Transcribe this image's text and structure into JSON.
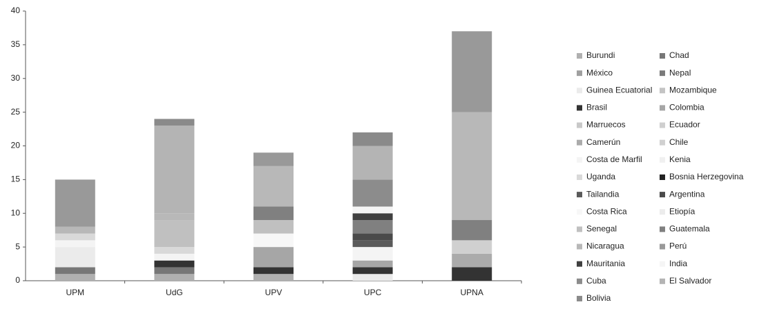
{
  "chart_data": {
    "type": "stacked_bar",
    "categories": [
      "UPM",
      "UdG",
      "UPV",
      "UPC",
      "UPNA"
    ],
    "ylim": [
      0,
      40
    ],
    "yticks": [
      0,
      5,
      10,
      15,
      20,
      25,
      30,
      35,
      40
    ],
    "grid": false,
    "legend": "right",
    "series": [
      {
        "name": "Burundi",
        "color": "#b0b0b0",
        "values": [
          1,
          1,
          1,
          0,
          0
        ]
      },
      {
        "name": "Chad",
        "color": "#777777",
        "values": [
          1,
          1,
          0,
          0,
          0
        ]
      },
      {
        "name": "México",
        "color": "#a0a0a0",
        "values": [
          0,
          0,
          0,
          0,
          0
        ]
      },
      {
        "name": "Nepal",
        "color": "#7a7a7a",
        "values": [
          0,
          0,
          0,
          0,
          0
        ]
      },
      {
        "name": "Guinea Ecuatorial",
        "color": "#ebebeb",
        "values": [
          3,
          0,
          0,
          1,
          0
        ]
      },
      {
        "name": "Mozambique",
        "color": "#c4c4c4",
        "values": [
          0,
          0,
          0,
          0,
          0
        ]
      },
      {
        "name": "Brasil",
        "color": "#333333",
        "values": [
          0,
          1,
          1,
          1,
          2
        ]
      },
      {
        "name": "Colombia",
        "color": "#a6a6a6",
        "values": [
          0,
          0,
          3,
          1,
          0
        ]
      },
      {
        "name": "Marruecos",
        "color": "#c8c8c8",
        "values": [
          0,
          0,
          0,
          0,
          0
        ]
      },
      {
        "name": "Ecuador",
        "color": "#cfcfcf",
        "values": [
          0,
          0,
          0,
          0,
          0
        ]
      },
      {
        "name": "Camerún",
        "color": "#ababab",
        "values": [
          0,
          0,
          0,
          0,
          2
        ]
      },
      {
        "name": "Chile",
        "color": "#d0d0d0",
        "values": [
          0,
          0,
          0,
          0,
          2
        ]
      },
      {
        "name": "Costa de Marfil",
        "color": "#f4f4f4",
        "values": [
          1,
          1,
          0,
          2,
          0
        ]
      },
      {
        "name": "Kenia",
        "color": "#f0f0f0",
        "values": [
          0,
          0,
          0,
          0,
          0
        ]
      },
      {
        "name": "Uganda",
        "color": "#d9d9d9",
        "values": [
          1,
          1,
          0,
          0,
          0
        ]
      },
      {
        "name": "Bosnia Herzegovina",
        "color": "#222222",
        "values": [
          0,
          0,
          0,
          0,
          0
        ]
      },
      {
        "name": "Tailandia",
        "color": "#5a5a5a",
        "values": [
          0,
          0,
          0,
          1,
          0
        ]
      },
      {
        "name": "Argentina",
        "color": "#4a4a4a",
        "values": [
          0,
          0,
          0,
          1,
          0
        ]
      },
      {
        "name": "Costa Rica",
        "color": "#f7f7f7",
        "values": [
          0,
          0,
          2,
          0,
          0
        ]
      },
      {
        "name": "Etiopía",
        "color": "#ececec",
        "values": [
          0,
          0,
          0,
          0,
          0
        ]
      },
      {
        "name": "Senegal",
        "color": "#c0c0c0",
        "values": [
          0,
          4,
          2,
          0,
          0
        ]
      },
      {
        "name": "Guatemala",
        "color": "#808080",
        "values": [
          0,
          0,
          2,
          2,
          3
        ]
      },
      {
        "name": "Nicaragua",
        "color": "#b8b8b8",
        "values": [
          1,
          1,
          6,
          0,
          16
        ]
      },
      {
        "name": "Perú",
        "color": "#999999",
        "values": [
          7,
          0,
          2,
          0,
          12
        ]
      },
      {
        "name": "Mauritania",
        "color": "#404040",
        "values": [
          0,
          0,
          0,
          1,
          0
        ]
      },
      {
        "name": "India",
        "color": "#f5f5f5",
        "values": [
          0,
          0,
          0,
          1,
          0
        ]
      },
      {
        "name": "Cuba",
        "color": "#8c8c8c",
        "values": [
          0,
          0,
          0,
          4,
          0
        ]
      },
      {
        "name": "El Salvador",
        "color": "#b4b4b4",
        "values": [
          0,
          13,
          0,
          5,
          0
        ]
      },
      {
        "name": "Bolivia",
        "color": "#8a8a8a",
        "values": [
          0,
          1,
          0,
          2,
          0
        ]
      }
    ]
  }
}
